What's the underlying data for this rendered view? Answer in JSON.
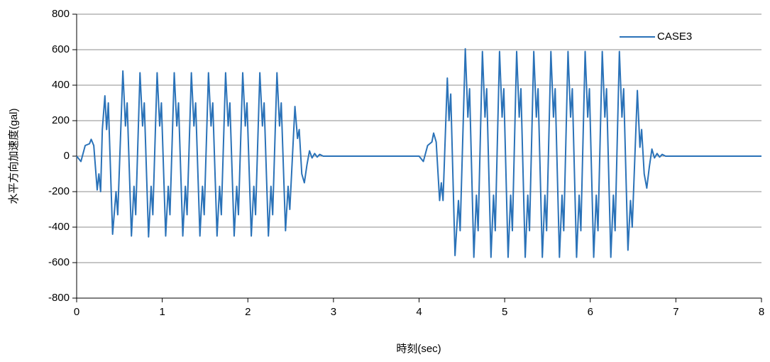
{
  "chart_data": {
    "type": "line",
    "x_label": "時刻(sec)",
    "y_label": "水平方向加速度(gal)",
    "x": [
      0,
      0.05,
      0.1,
      0.15,
      0.17,
      0.2,
      0.24,
      0.26,
      0.28,
      0.3,
      0.33,
      0.35,
      0.37,
      0.42,
      0.46,
      0.48,
      0.54,
      0.57,
      0.59,
      0.64,
      0.67,
      0.69,
      0.74,
      0.77,
      0.79,
      0.84,
      0.87,
      0.89,
      0.94,
      0.97,
      0.99,
      1.04,
      1.07,
      1.09,
      1.14,
      1.17,
      1.19,
      1.24,
      1.27,
      1.29,
      1.34,
      1.37,
      1.39,
      1.44,
      1.47,
      1.49,
      1.54,
      1.57,
      1.59,
      1.64,
      1.67,
      1.69,
      1.74,
      1.77,
      1.79,
      1.84,
      1.87,
      1.89,
      1.94,
      1.97,
      1.99,
      2.04,
      2.07,
      2.09,
      2.14,
      2.17,
      2.19,
      2.24,
      2.27,
      2.29,
      2.34,
      2.37,
      2.39,
      2.44,
      2.47,
      2.49,
      2.55,
      2.58,
      2.6,
      2.63,
      2.66,
      2.69,
      2.72,
      2.75,
      2.78,
      2.81,
      2.84,
      2.88,
      4,
      4.05,
      4.1,
      4.15,
      4.17,
      4.2,
      4.24,
      4.26,
      4.28,
      4.33,
      4.35,
      4.37,
      4.42,
      4.46,
      4.48,
      4.54,
      4.57,
      4.59,
      4.64,
      4.67,
      4.69,
      4.74,
      4.77,
      4.79,
      4.84,
      4.87,
      4.89,
      4.94,
      4.97,
      4.99,
      5.04,
      5.07,
      5.09,
      5.14,
      5.17,
      5.19,
      5.24,
      5.27,
      5.29,
      5.34,
      5.37,
      5.39,
      5.44,
      5.47,
      5.49,
      5.54,
      5.57,
      5.59,
      5.64,
      5.67,
      5.69,
      5.74,
      5.77,
      5.79,
      5.84,
      5.87,
      5.89,
      5.94,
      5.97,
      5.99,
      6.04,
      6.07,
      6.09,
      6.14,
      6.17,
      6.19,
      6.24,
      6.27,
      6.29,
      6.34,
      6.37,
      6.39,
      6.44,
      6.47,
      6.49,
      6.55,
      6.58,
      6.6,
      6.63,
      6.66,
      6.69,
      6.72,
      6.75,
      6.78,
      6.81,
      6.84,
      6.88,
      8
    ],
    "series": [
      {
        "name": "CASE3",
        "color": "#2a72b8",
        "values": [
          0,
          -30,
          60,
          70,
          95,
          60,
          -190,
          -100,
          -200,
          150,
          340,
          150,
          300,
          -440,
          -200,
          -330,
          480,
          170,
          300,
          -450,
          -170,
          -330,
          470,
          170,
          300,
          -455,
          -170,
          -330,
          470,
          170,
          300,
          -450,
          -170,
          -330,
          470,
          170,
          300,
          -450,
          -170,
          -330,
          470,
          170,
          300,
          -450,
          -170,
          -330,
          470,
          170,
          300,
          -450,
          -170,
          -330,
          470,
          170,
          300,
          -450,
          -170,
          -330,
          470,
          170,
          300,
          -450,
          -170,
          -330,
          470,
          170,
          300,
          -450,
          -170,
          -330,
          470,
          170,
          300,
          -420,
          -170,
          -300,
          280,
          100,
          150,
          -100,
          -150,
          -50,
          30,
          -10,
          15,
          -5,
          10,
          0,
          0,
          -30,
          60,
          80,
          130,
          80,
          -250,
          -150,
          -250,
          440,
          200,
          350,
          -560,
          -250,
          -420,
          605,
          220,
          380,
          -570,
          -220,
          -420,
          590,
          220,
          380,
          -570,
          -220,
          -420,
          590,
          220,
          380,
          -570,
          -220,
          -420,
          590,
          220,
          380,
          -570,
          -220,
          -420,
          590,
          220,
          380,
          -570,
          -220,
          -420,
          590,
          220,
          380,
          -570,
          -220,
          -420,
          590,
          220,
          380,
          -570,
          -220,
          -420,
          590,
          220,
          380,
          -570,
          -220,
          -420,
          590,
          220,
          380,
          -570,
          -220,
          -420,
          590,
          220,
          380,
          -530,
          -250,
          -400,
          370,
          50,
          150,
          -100,
          -180,
          -60,
          40,
          -10,
          15,
          -5,
          10,
          0,
          0
        ]
      }
    ],
    "xlim": [
      0,
      8
    ],
    "xticks": [
      0,
      1,
      2,
      3,
      4,
      5,
      6,
      7,
      8
    ],
    "ylim": [
      -800,
      800
    ],
    "yticks": [
      -800,
      -600,
      -400,
      -200,
      0,
      200,
      400,
      600,
      800
    ],
    "grid": true,
    "legend": "upper right"
  }
}
